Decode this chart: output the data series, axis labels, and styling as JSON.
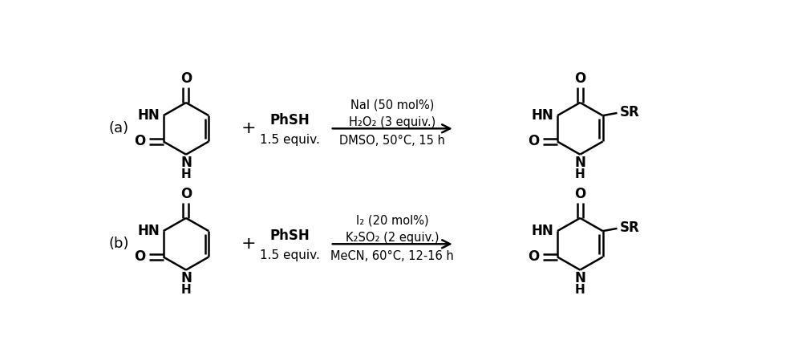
{
  "background_color": "#ffffff",
  "figure_width": 10.0,
  "figure_height": 4.44,
  "dpi": 100,
  "reaction_a": {
    "label": "(a)",
    "reagent_above": "NaI (50 mol%)",
    "reagent_middle": "H₂O₂ (3 equiv.)",
    "reagent_below": "DMSO, 50°C, 15 h",
    "thiol_text": "PhSH",
    "thiol_equiv": "1.5 equiv."
  },
  "reaction_b": {
    "label": "(b)",
    "reagent_above": "I₂ (20 mol%)",
    "reagent_middle": "K₂SO₂ (2 equiv.)",
    "reagent_below": "MeCN, 60°C, 12-16 h",
    "thiol_text": "PhSH",
    "thiol_equiv": "1.5 equiv."
  },
  "line_width": 1.8,
  "font_size": 11,
  "font_size_label": 12,
  "text_color": "#000000"
}
